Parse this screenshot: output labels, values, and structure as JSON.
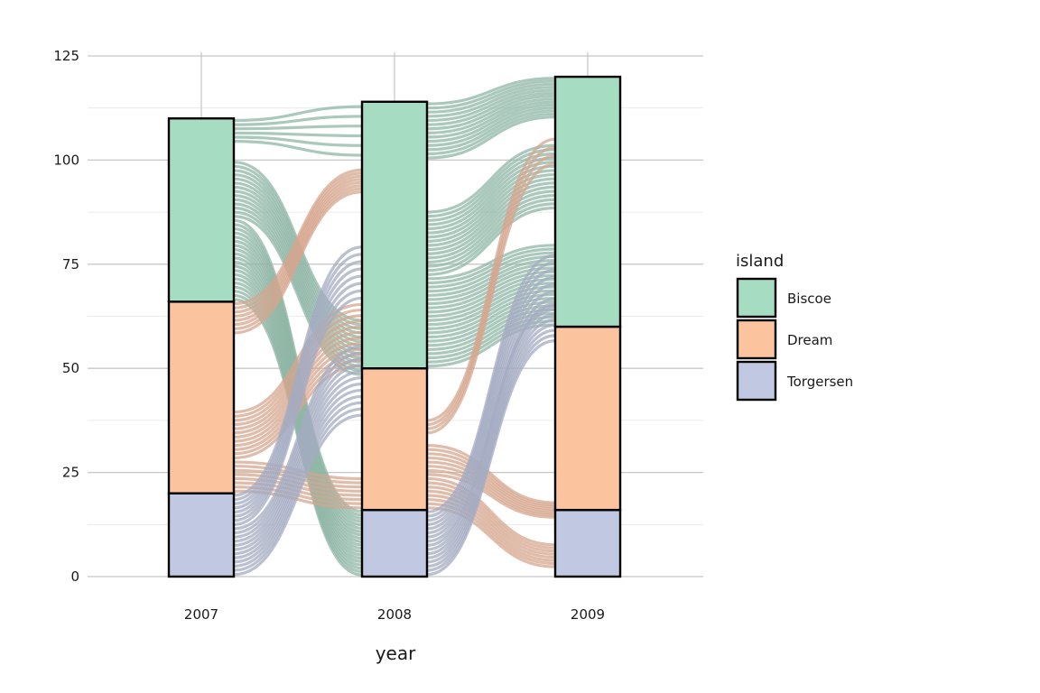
{
  "chart_data": {
    "type": "alluvial",
    "title": "",
    "xlabel": "year",
    "ylabel": "",
    "x": [
      "2007",
      "2008",
      "2009"
    ],
    "ylim": [
      0,
      125
    ],
    "yticks": [
      0,
      25,
      50,
      75,
      100,
      125
    ],
    "grid": true,
    "legend": {
      "title": "island",
      "position": "right",
      "entries": [
        "Biscoe",
        "Dream",
        "Torgersen"
      ]
    },
    "colors": {
      "Biscoe": "#a6dcc2",
      "Dream": "#fbc39e",
      "Torgersen": "#c0c8e2",
      "flow_Biscoe": "#8fb5a5",
      "flow_Dream": "#d6a58e",
      "flow_Torgersen": "#a4abc2"
    },
    "stacks": [
      {
        "year": "2007",
        "Torgersen": 20,
        "Dream": 46,
        "Biscoe": 44
      },
      {
        "year": "2008",
        "Torgersen": 16,
        "Dream": 34,
        "Biscoe": 64
      },
      {
        "year": "2009",
        "Torgersen": 16,
        "Dream": 44,
        "Biscoe": 60
      }
    ],
    "flows": [
      {
        "group": "Biscoe",
        "from": "2007",
        "to": "2008",
        "y0": [
          104,
          110
        ],
        "y1": [
          100,
          114
        ]
      },
      {
        "group": "Biscoe",
        "from": "2007",
        "to": "2008",
        "y0": [
          86,
          100
        ],
        "y1": [
          48,
          62
        ]
      },
      {
        "group": "Biscoe",
        "from": "2007",
        "to": "2008",
        "y0": [
          66,
          86
        ],
        "y1": [
          0,
          16
        ]
      },
      {
        "group": "Dream",
        "from": "2007",
        "to": "2008",
        "y0": [
          58,
          66
        ],
        "y1": [
          92,
          98
        ]
      },
      {
        "group": "Dream",
        "from": "2007",
        "to": "2008",
        "y0": [
          28,
          40
        ],
        "y1": [
          50,
          66
        ]
      },
      {
        "group": "Dream",
        "from": "2007",
        "to": "2008",
        "y0": [
          20,
          28
        ],
        "y1": [
          16,
          24
        ]
      },
      {
        "group": "Torgersen",
        "from": "2007",
        "to": "2008",
        "y0": [
          12,
          20
        ],
        "y1": [
          66,
          80
        ]
      },
      {
        "group": "Torgersen",
        "from": "2007",
        "to": "2008",
        "y0": [
          0,
          12
        ],
        "y1": [
          38,
          56
        ]
      },
      {
        "group": "Biscoe",
        "from": "2008",
        "to": "2009",
        "y0": [
          100,
          114
        ],
        "y1": [
          110,
          120
        ]
      },
      {
        "group": "Biscoe",
        "from": "2008",
        "to": "2009",
        "y0": [
          72,
          88
        ],
        "y1": [
          88,
          104
        ]
      },
      {
        "group": "Biscoe",
        "from": "2008",
        "to": "2009",
        "y0": [
          50,
          72
        ],
        "y1": [
          60,
          80
        ]
      },
      {
        "group": "Dream",
        "from": "2008",
        "to": "2009",
        "y0": [
          34,
          38
        ],
        "y1": [
          98,
          106
        ]
      },
      {
        "group": "Dream",
        "from": "2008",
        "to": "2009",
        "y0": [
          24,
          32
        ],
        "y1": [
          14,
          18
        ]
      },
      {
        "group": "Dream",
        "from": "2008",
        "to": "2009",
        "y0": [
          16,
          24
        ],
        "y1": [
          2,
          8
        ]
      },
      {
        "group": "Torgersen",
        "from": "2008",
        "to": "2009",
        "y0": [
          8,
          16
        ],
        "y1": [
          64,
          78
        ]
      },
      {
        "group": "Torgersen",
        "from": "2008",
        "to": "2009",
        "y0": [
          0,
          8
        ],
        "y1": [
          56,
          66
        ]
      }
    ]
  }
}
